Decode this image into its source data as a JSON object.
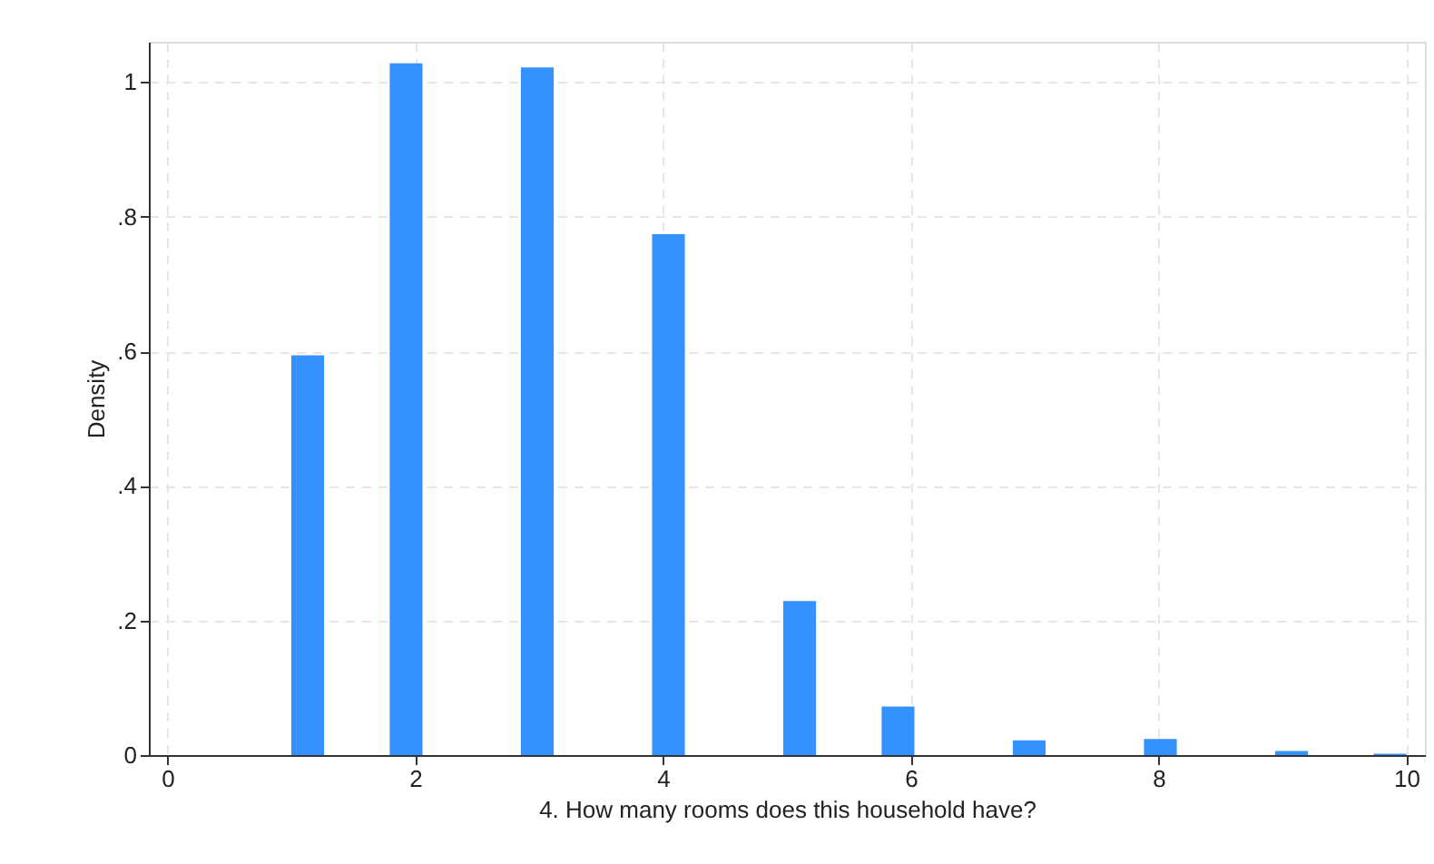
{
  "chart_data": {
    "type": "histogram",
    "xlabel": "4. How many rooms does this household have?",
    "ylabel": "Density",
    "bins": [
      1,
      1.2647,
      1.5294,
      1.7941,
      2.0588,
      2.3235,
      2.5882,
      2.8529,
      3.1176,
      3.3824,
      3.6471,
      3.9118,
      4.1765,
      4.4412,
      4.7059,
      4.9706,
      5.2353,
      5.5,
      5.7647,
      6.0294,
      6.2941,
      6.5588,
      6.8235,
      7.0882,
      7.3529,
      7.6176,
      7.8824,
      8.1471,
      8.4118,
      8.6765,
      8.9412,
      9.2059,
      9.4706,
      9.7353,
      10
    ],
    "values": [
      0.594,
      0,
      0,
      1.028,
      0,
      0,
      0,
      1.022,
      0,
      0,
      0,
      0.774,
      0,
      0,
      0,
      0.229,
      0,
      0,
      0.072,
      0,
      0,
      0,
      0.022,
      0,
      0,
      0,
      0.024,
      0,
      0,
      0,
      0.006,
      0,
      0,
      0.002
    ],
    "color": "#3592fd",
    "xlim": [
      -0.15,
      10.15
    ],
    "xticks": [
      0,
      2,
      4,
      6,
      8,
      10
    ],
    "ylim": [
      0,
      1.06
    ],
    "yticks": [
      0,
      {
        "value": 0.2,
        "label": ".2"
      },
      {
        "value": 0.4,
        "label": ".4"
      },
      {
        "value": 0.6,
        "label": ".6"
      },
      {
        "value": 0.8,
        "label": ".8"
      },
      1
    ],
    "grid": true
  }
}
